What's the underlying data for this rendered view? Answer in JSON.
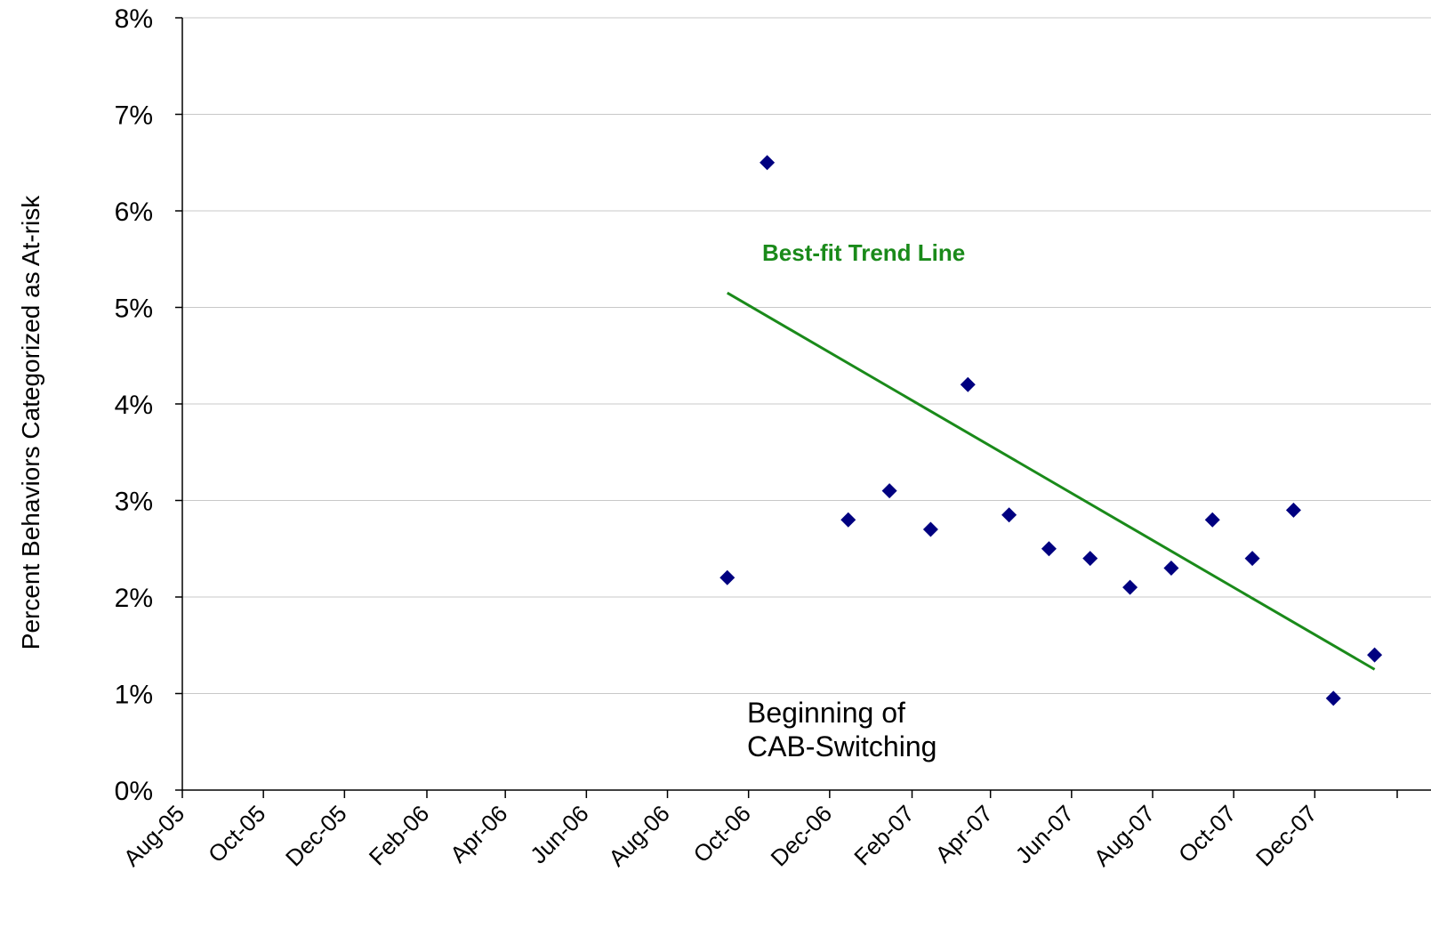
{
  "chart_data": {
    "type": "scatter",
    "ylabel": "Percent Behaviors Categorized as At-risk",
    "xlabel": "",
    "x_tick_labels": [
      "Aug-05",
      "Oct-05",
      "Dec-05",
      "Feb-06",
      "Apr-06",
      "Jun-06",
      "Aug-06",
      "Oct-06",
      "Dec-06",
      "Feb-07",
      "Apr-07",
      "Jun-07",
      "Aug-07",
      "Oct-07",
      "Dec-07"
    ],
    "xlim": [
      "2005-08-01",
      "2008-02-01"
    ],
    "y_tick_labels": [
      "0%",
      "1%",
      "2%",
      "3%",
      "4%",
      "5%",
      "6%",
      "7%",
      "8%"
    ],
    "ylim": [
      0,
      8
    ],
    "grid": "horizontal",
    "series": [
      {
        "color": "#000080",
        "marker": "diamond",
        "points": [
          {
            "x": "2006-09-15",
            "y": 2.2
          },
          {
            "x": "2006-10-15",
            "y": 6.5
          },
          {
            "x": "2006-12-15",
            "y": 2.8
          },
          {
            "x": "2007-01-15",
            "y": 3.1
          },
          {
            "x": "2007-02-15",
            "y": 2.7
          },
          {
            "x": "2007-03-15",
            "y": 4.2
          },
          {
            "x": "2007-04-15",
            "y": 2.85
          },
          {
            "x": "2007-05-15",
            "y": 2.5
          },
          {
            "x": "2007-06-15",
            "y": 2.4
          },
          {
            "x": "2007-07-15",
            "y": 2.1
          },
          {
            "x": "2007-08-15",
            "y": 2.3
          },
          {
            "x": "2007-09-15",
            "y": 2.8
          },
          {
            "x": "2007-10-15",
            "y": 2.4
          },
          {
            "x": "2007-11-15",
            "y": 2.9
          },
          {
            "x": "2007-12-15",
            "y": 0.95
          },
          {
            "x": "2008-01-15",
            "y": 1.4
          }
        ]
      }
    ],
    "trend_line": {
      "label": "Best-fit Trend Line",
      "color": "#1a8a1a",
      "start": {
        "x": "2006-09-15",
        "y": 5.15
      },
      "end": {
        "x": "2008-01-15",
        "y": 1.25
      }
    },
    "annotations": [
      {
        "text": "Beginning of\nCAB-Switching",
        "lines": [
          "Beginning of",
          "CAB-Switching"
        ]
      }
    ]
  }
}
